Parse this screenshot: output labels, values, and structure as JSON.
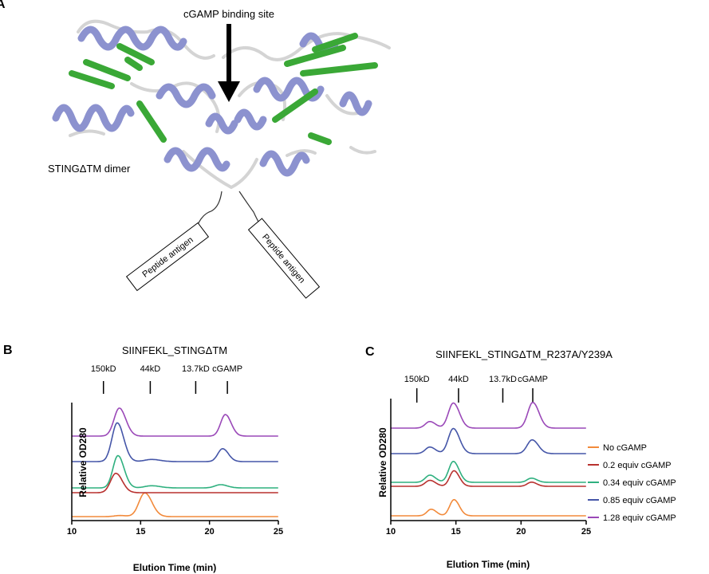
{
  "panel_a": {
    "letter": "A",
    "arrow_label": "cGAMP binding site",
    "dimer_label": "STINGΔTM dimer",
    "peptide_left": "Peptide antigen",
    "peptide_right": "Peptide antigen",
    "colors": {
      "helix": "#8c92cf",
      "sheet": "#3aa836",
      "loop": "#dcdcdc"
    }
  },
  "chart_data": [
    {
      "id": "B",
      "type": "line",
      "panel_letter": "B",
      "title": "SIINFEKL_STINGΔTM",
      "xlabel": "Elution Time (min)",
      "ylabel": "Relative OD280",
      "xlim": [
        10,
        25
      ],
      "xticks": [
        10,
        15,
        20,
        25
      ],
      "markers": [
        {
          "label": "150kD",
          "x": 12.3
        },
        {
          "label": "44kD",
          "x": 15.7
        },
        {
          "label": "13.7kD",
          "x": 19.0
        },
        {
          "label": "cGAMP",
          "x": 21.3
        }
      ],
      "series": [
        {
          "name": "No cGAMP",
          "color": "#f28a3b",
          "baseline": 0,
          "peaks": [
            {
              "center": 15.3,
              "height": 0.22,
              "width": 0.42
            },
            {
              "center": 13.5,
              "height": 0.01,
              "width": 0.4
            }
          ]
        },
        {
          "name": "0.2 equiv cGAMP",
          "color": "#b8312f",
          "baseline": 1,
          "peaks": [
            {
              "center": 13.2,
              "height": 0.18,
              "width": 0.38
            }
          ]
        },
        {
          "name": "0.34 equiv cGAMP",
          "color": "#2fb07f",
          "baseline": 2,
          "peaks": [
            {
              "center": 13.35,
              "height": 0.3,
              "width": 0.36
            },
            {
              "center": 15.8,
              "height": 0.02,
              "width": 0.5
            },
            {
              "center": 20.8,
              "height": 0.03,
              "width": 0.4
            }
          ]
        },
        {
          "name": "0.85 equiv cGAMP",
          "color": "#4556a8",
          "baseline": 3,
          "peaks": [
            {
              "center": 13.3,
              "height": 0.36,
              "width": 0.38
            },
            {
              "center": 15.8,
              "height": 0.02,
              "width": 0.5
            },
            {
              "center": 20.95,
              "height": 0.12,
              "width": 0.34
            }
          ]
        },
        {
          "name": "1.28 equiv cGAMP",
          "color": "#9a48b8",
          "baseline": 4,
          "peaks": [
            {
              "center": 13.45,
              "height": 0.26,
              "width": 0.38
            },
            {
              "center": 21.15,
              "height": 0.2,
              "width": 0.34
            }
          ]
        }
      ]
    },
    {
      "id": "C",
      "type": "line",
      "panel_letter": "C",
      "title": "SIINFEKL_STINGΔTM_R237A/Y239A",
      "xlabel": "Elution Time (min)",
      "ylabel": "Relative OD280",
      "xlim": [
        10,
        25
      ],
      "xticks": [
        10,
        15,
        20,
        25
      ],
      "markers": [
        {
          "label": "150kD",
          "x": 12.0
        },
        {
          "label": "44kD",
          "x": 15.2
        },
        {
          "label": "13.7kD",
          "x": 18.6
        },
        {
          "label": "cGAMP",
          "x": 20.9
        }
      ],
      "legend": {
        "position": "right",
        "entries": [
          "No cGAMP",
          "0.2 equiv cGAMP",
          "0.34 equiv cGAMP",
          "0.85 equiv cGAMP",
          "1.28 equiv cGAMP"
        ]
      },
      "series": [
        {
          "name": "No cGAMP",
          "color": "#f28a3b",
          "baseline": 0,
          "peaks": [
            {
              "center": 13.1,
              "height": 0.11,
              "width": 0.32
            },
            {
              "center": 14.85,
              "height": 0.27,
              "width": 0.33
            }
          ]
        },
        {
          "name": "0.2 equiv cGAMP",
          "color": "#b8312f",
          "baseline": 1,
          "peaks": [
            {
              "center": 13.0,
              "height": 0.1,
              "width": 0.35
            },
            {
              "center": 14.85,
              "height": 0.26,
              "width": 0.33
            },
            {
              "center": 20.8,
              "height": 0.07,
              "width": 0.32
            }
          ]
        },
        {
          "name": "0.34 equiv cGAMP",
          "color": "#2fb07f",
          "baseline": 2,
          "peaks": [
            {
              "center": 13.0,
              "height": 0.12,
              "width": 0.35
            },
            {
              "center": 14.8,
              "height": 0.35,
              "width": 0.35
            },
            {
              "center": 20.8,
              "height": 0.07,
              "width": 0.33
            }
          ]
        },
        {
          "name": "0.85 equiv cGAMP",
          "color": "#4556a8",
          "baseline": 3,
          "peaks": [
            {
              "center": 13.0,
              "height": 0.11,
              "width": 0.35
            },
            {
              "center": 14.8,
              "height": 0.42,
              "width": 0.38
            },
            {
              "center": 20.85,
              "height": 0.23,
              "width": 0.38
            }
          ]
        },
        {
          "name": "1.28 equiv cGAMP",
          "color": "#9a48b8",
          "baseline": 4,
          "peaks": [
            {
              "center": 13.0,
              "height": 0.11,
              "width": 0.35
            },
            {
              "center": 14.8,
              "height": 0.42,
              "width": 0.38
            },
            {
              "center": 20.9,
              "height": 0.43,
              "width": 0.38
            }
          ]
        }
      ]
    }
  ]
}
